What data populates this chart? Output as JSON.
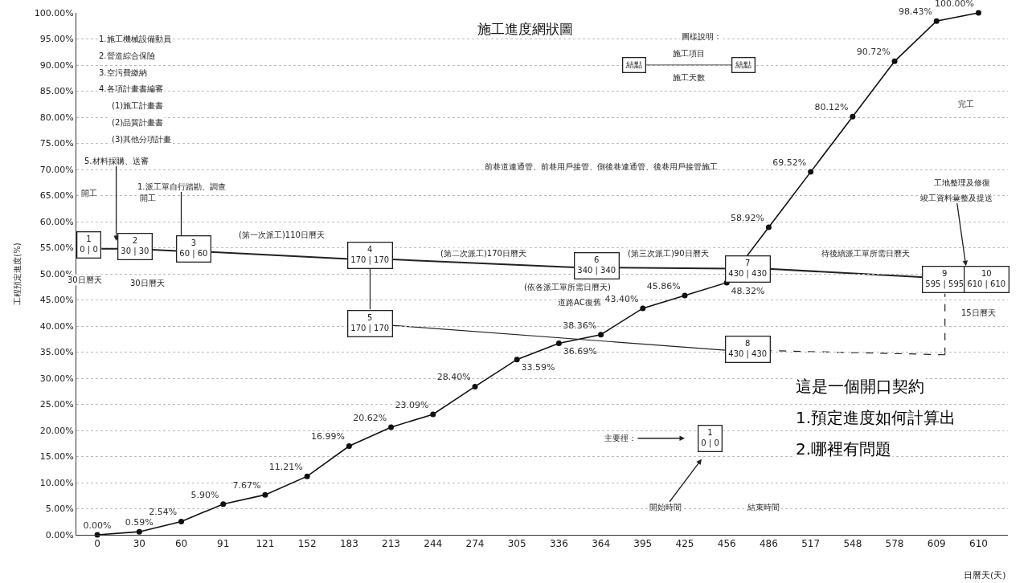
{
  "chart_data": {
    "type": "line",
    "title": "施工進度網狀圖",
    "xlabel": "日曆天(天)",
    "ylabel": "工程預定進度(%)",
    "categories": [
      "0",
      "30",
      "60",
      "91",
      "121",
      "152",
      "183",
      "213",
      "244",
      "274",
      "305",
      "336",
      "364",
      "395",
      "425",
      "456",
      "486",
      "517",
      "548",
      "578",
      "609",
      "610"
    ],
    "series": [
      {
        "color": "#111111",
        "values": [
          0.0,
          0.59,
          2.54,
          5.9,
          7.67,
          11.21,
          16.99,
          20.62,
          23.09,
          28.4,
          33.59,
          36.69,
          38.36,
          43.4,
          45.86,
          48.32,
          58.92,
          69.52,
          80.12,
          90.72,
          98.43,
          100.0
        ],
        "value_labels": [
          "0.00%",
          "0.59%",
          "2.54%",
          "5.90%",
          "7.67%",
          "11.21%",
          "16.99%",
          "20.62%",
          "23.09%",
          "28.40%",
          "33.59%",
          "36.69%",
          "38.36%",
          "43.40%",
          "45.86%",
          "48.32%",
          "58.92%",
          "69.52%",
          "80.12%",
          "90.72%",
          "98.43%",
          "100.00%"
        ]
      }
    ],
    "ylim": [
      0,
      100
    ],
    "yticks": [
      {
        "value": 0,
        "label": "0.00%"
      },
      {
        "value": 5,
        "label": "5.00%"
      },
      {
        "value": 10,
        "label": "10.00%"
      },
      {
        "value": 15,
        "label": "15.00%"
      },
      {
        "value": 20,
        "label": "20.00%"
      },
      {
        "value": 25,
        "label": "25.00%"
      },
      {
        "value": 30,
        "label": "30.00%"
      },
      {
        "value": 35,
        "label": "35.00%"
      },
      {
        "value": 40,
        "label": "40.00%"
      },
      {
        "value": 45,
        "label": "45.00%"
      },
      {
        "value": 50,
        "label": "50.00%"
      },
      {
        "value": 55,
        "label": "55.00%"
      },
      {
        "value": 60,
        "label": "60.00%"
      },
      {
        "value": 65,
        "label": "65.00%"
      },
      {
        "value": 70,
        "label": "70.00%"
      },
      {
        "value": 75,
        "label": "75.00%"
      },
      {
        "value": 80,
        "label": "80.00%"
      },
      {
        "value": 85,
        "label": "85.00%"
      },
      {
        "value": 90,
        "label": "90.00%"
      },
      {
        "value": 95,
        "label": "95.00%"
      },
      {
        "value": 100,
        "label": "100.00%"
      }
    ],
    "grid": "y",
    "marker": "circle",
    "line_style": "solid",
    "annotations": [
      "圖樣說明：",
      "結點",
      "結點",
      "施工項目",
      "施工天數",
      "1.施工機械設備動員",
      "2.營造綜合保險",
      "3.空污費繳納",
      "4.各項計畫書編審",
      "(1)施工計畫書",
      "(2)品質計畫書",
      "(3)其他分項計畫",
      "5.材料採購、送審",
      "1.派工單自行踏勘、調查",
      "開工",
      "開工",
      "1\n0 | 0",
      "2\n30 | 30",
      "3\n60 | 60",
      "4\n170 | 170",
      "5\n170 | 170",
      "6\n340 | 340",
      "7\n430 | 430",
      "8\n430 | 430",
      "9\n595 | 595",
      "10\n610 | 610",
      "30日曆天",
      "30日曆天",
      "(第一次派工)110日曆天",
      "(第二次派工)170日曆天",
      "(第三次派工)90日曆天",
      "前巷道連通管、前巷用戶接管、側後巷連通管、後巷用戶接管施工",
      "待後續派工單所需日曆天",
      "工地整理及修復",
      "竣工資料彙整及提送",
      "完工",
      "(依各派工單所需日曆天)",
      "道路AC復舊",
      "15日曆天",
      "主要徑：",
      "1\n0 | 0",
      "開始時間",
      "結束時間",
      "這是一個開口契約",
      "1.預定進度如何計算出",
      "2.哪裡有問題"
    ]
  }
}
